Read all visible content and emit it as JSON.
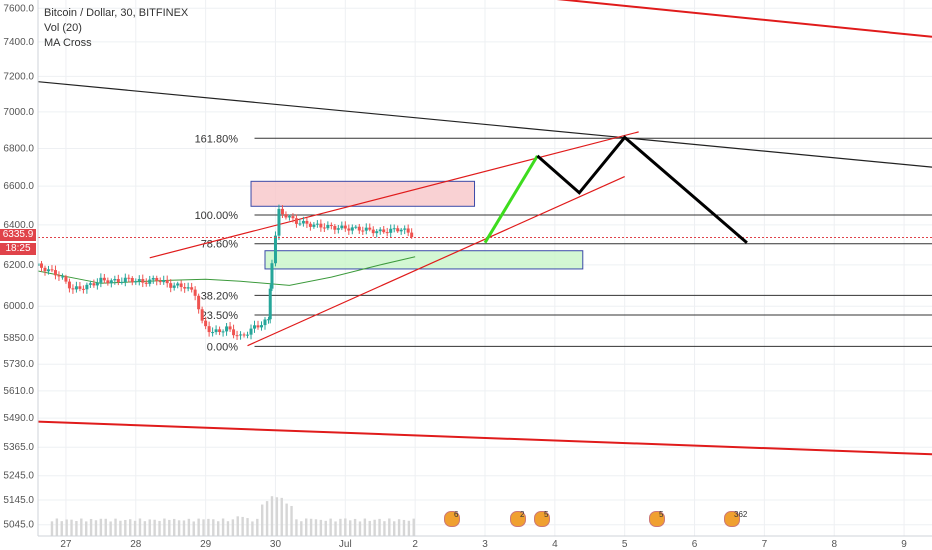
{
  "legend": {
    "title": "Bitcoin / Dollar, 30, BITFINEX",
    "vol": "Vol (20)",
    "ma": "MA Cross"
  },
  "price_label": {
    "price": "6335.9",
    "timer": "18:25"
  },
  "colors": {
    "up": "#26a69a",
    "down": "#ef5350",
    "fib": "#333333",
    "trend_red": "#e01b1b",
    "trend_black": "#222222",
    "projection_green": "#3ddc1e",
    "projection_black": "#000000",
    "ma": "#3c9a3c",
    "ma2": "#e05050",
    "red_zone": "#f8c6c8",
    "green_zone": "#c8f5c8",
    "volume": "#d6d6d6"
  },
  "events": [
    {
      "x": "Jul 2.6",
      "label": "6"
    },
    {
      "x": "Jul 3.6",
      "label": "2"
    },
    {
      "x": "Jul 3.9",
      "label": "5"
    },
    {
      "x": "Jul 5.5",
      "label": "5"
    },
    {
      "x": "Jul 6.6",
      "label": "362"
    }
  ],
  "chart_data": {
    "type": "candlestick",
    "title": "Bitcoin / Dollar, 30, BITFINEX",
    "x_ticks": [
      "27",
      "28",
      "29",
      "30",
      "Jul",
      "2",
      "3",
      "4",
      "5",
      "6",
      "7",
      "8",
      "9"
    ],
    "x_tick_days": [
      27,
      28,
      29,
      30,
      31,
      32,
      33,
      34,
      35,
      36,
      37,
      38,
      39
    ],
    "y_ticks": [
      7600,
      7400,
      7200,
      7000,
      6800,
      6600,
      6400,
      6200,
      6000,
      5850,
      5730,
      5610,
      5490,
      5365,
      5245,
      5145,
      5045
    ],
    "ylim": [
      5000,
      7650
    ],
    "xlim": [
      26.6,
      39.4
    ],
    "scale": "log",
    "fib_levels": [
      {
        "label": "161.80%",
        "price": 6855
      },
      {
        "label": "100.00%",
        "price": 6450
      },
      {
        "label": "78.60%",
        "price": 6305
      },
      {
        "label": "38.20%",
        "price": 6052
      },
      {
        "label": "23.50%",
        "price": 5958
      },
      {
        "label": "0.00%",
        "price": 5812
      }
    ],
    "price_series": [
      [
        26.6,
        6195
      ],
      [
        26.9,
        6150
      ],
      [
        27.1,
        6080
      ],
      [
        27.3,
        6095
      ],
      [
        27.5,
        6125
      ],
      [
        27.7,
        6120
      ],
      [
        27.9,
        6130
      ],
      [
        28.1,
        6115
      ],
      [
        28.3,
        6130
      ],
      [
        28.5,
        6100
      ],
      [
        28.7,
        6095
      ],
      [
        28.85,
        6060
      ],
      [
        28.95,
        5920
      ],
      [
        29.1,
        5875
      ],
      [
        29.3,
        5895
      ],
      [
        29.5,
        5855
      ],
      [
        29.7,
        5900
      ],
      [
        29.9,
        5935
      ],
      [
        29.95,
        6220
      ],
      [
        30.05,
        6470
      ],
      [
        30.3,
        6415
      ],
      [
        30.6,
        6395
      ],
      [
        30.9,
        6385
      ],
      [
        31.2,
        6380
      ],
      [
        31.5,
        6365
      ],
      [
        31.8,
        6380
      ],
      [
        32.0,
        6340
      ]
    ],
    "ma_series": [
      [
        26.6,
        6170
      ],
      [
        27.5,
        6110
      ],
      [
        28.5,
        6125
      ],
      [
        29.0,
        6130
      ],
      [
        29.5,
        6120
      ],
      [
        30.2,
        6100
      ],
      [
        30.8,
        6140
      ],
      [
        31.5,
        6200
      ],
      [
        32.0,
        6240
      ]
    ],
    "volume": [
      [
        27.0,
        5060
      ],
      [
        27.5,
        5065
      ],
      [
        28.0,
        5062
      ],
      [
        28.5,
        5068
      ],
      [
        29.0,
        5070
      ],
      [
        29.5,
        5080
      ],
      [
        30.0,
        5160
      ],
      [
        30.1,
        5090
      ],
      [
        30.5,
        5070
      ],
      [
        31.0,
        5066
      ],
      [
        31.5,
        5062
      ],
      [
        32.0,
        5060
      ]
    ],
    "zones": [
      {
        "name": "supply",
        "x": [
          29.65,
          32.85
        ],
        "price": [
          6495,
          6625
        ]
      },
      {
        "name": "demand",
        "x": [
          29.85,
          34.4
        ],
        "price": [
          6180,
          6270
        ]
      }
    ],
    "projection": [
      [
        33.0,
        6310
      ],
      [
        33.75,
        6760
      ],
      [
        34.35,
        6565
      ],
      [
        35.0,
        6860
      ],
      [
        36.75,
        6310
      ]
    ]
  }
}
